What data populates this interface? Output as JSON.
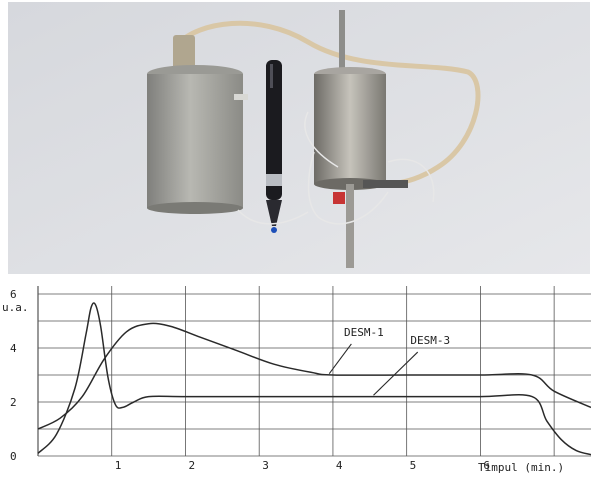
{
  "chart_data": {
    "type": "line",
    "title": "",
    "xlabel": "Timpul (min.)",
    "ylabel": "u.a.",
    "xlim": [
      0,
      7.5
    ],
    "ylim": [
      0,
      6
    ],
    "x_ticks": [
      "1",
      "2",
      "3",
      "4",
      "5",
      "6"
    ],
    "y_ticks": [
      "0",
      "2",
      "4",
      "6"
    ],
    "grid": true,
    "series": [
      {
        "name": "DESM-1",
        "x": [
          0,
          0.3,
          0.6,
          0.9,
          1.2,
          1.5,
          1.8,
          2.2,
          2.7,
          3.2,
          3.7,
          4.0,
          5.0,
          6.0,
          6.7,
          7.0,
          7.5
        ],
        "y": [
          1.0,
          1.4,
          2.2,
          3.6,
          4.6,
          4.9,
          4.8,
          4.4,
          3.9,
          3.4,
          3.1,
          3.0,
          3.0,
          3.0,
          3.0,
          2.4,
          1.8
        ]
      },
      {
        "name": "DESM-3",
        "x": [
          0,
          0.25,
          0.5,
          0.65,
          0.72,
          0.78,
          0.85,
          0.95,
          1.05,
          1.15,
          1.3,
          1.5,
          2.0,
          3.0,
          4.0,
          5.0,
          6.0,
          6.7,
          6.9,
          7.1,
          7.3,
          7.5
        ],
        "y": [
          0.1,
          0.8,
          2.5,
          4.5,
          5.5,
          5.6,
          4.8,
          2.9,
          1.9,
          1.8,
          2.0,
          2.2,
          2.2,
          2.2,
          2.2,
          2.2,
          2.2,
          2.2,
          1.3,
          0.6,
          0.2,
          0.05
        ]
      }
    ],
    "annotations": [
      "DESM-1",
      "DESM-3"
    ]
  },
  "colors": {
    "curve": "#2a2a2a",
    "grid": "#555555",
    "photo_wall": "#dcdde2"
  }
}
